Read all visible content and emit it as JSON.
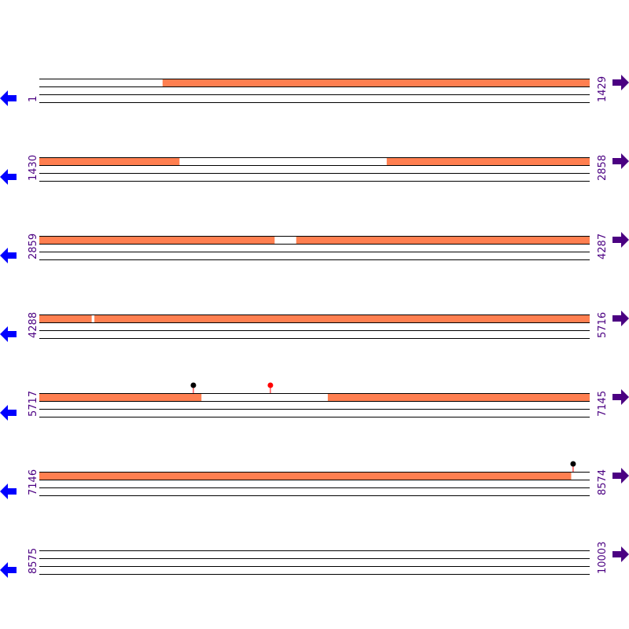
{
  "colors": {
    "feature": "#FF7F50",
    "line": "#000000",
    "label": "#4B0082",
    "left_arrow": "#0000FF",
    "right_arrow": "#4B0082",
    "marker_black": "#000000",
    "marker_red": "#FF0000",
    "stem": "#FF0000"
  },
  "icons": {
    "left": "arrow-left-icon",
    "right": "arrow-right-icon",
    "marker": "lollipop-marker-icon"
  },
  "rows": [
    {
      "start": "1",
      "end": "1429",
      "s": 1,
      "e": 1429,
      "features": [
        [
          321,
          1429
        ]
      ],
      "markers": []
    },
    {
      "start": "1430",
      "end": "2858",
      "s": 1430,
      "e": 2858,
      "features": [
        [
          1430,
          1793
        ],
        [
          2332,
          2858
        ]
      ],
      "markers": []
    },
    {
      "start": "2859",
      "end": "4287",
      "s": 2859,
      "e": 4287,
      "features": [
        [
          2859,
          3469
        ],
        [
          3526,
          4287
        ]
      ],
      "markers": []
    },
    {
      "start": "4288",
      "end": "5716",
      "s": 4288,
      "e": 5716,
      "features": [
        [
          4288,
          4423
        ],
        [
          4431,
          5716
        ]
      ],
      "markers": []
    },
    {
      "start": "5717",
      "end": "7145",
      "s": 5717,
      "e": 7145,
      "features": [
        [
          5717,
          6137
        ],
        [
          6466,
          7145
        ]
      ],
      "markers": [
        {
          "pos": 6117,
          "color": "black"
        },
        {
          "pos": 6317,
          "color": "red"
        }
      ]
    },
    {
      "start": "7146",
      "end": "8574",
      "s": 7146,
      "e": 8574,
      "features": [
        [
          7146,
          8526
        ]
      ],
      "markers": [
        {
          "pos": 8532,
          "color": "black"
        }
      ]
    },
    {
      "start": "8575",
      "end": "10003",
      "s": 8575,
      "e": 10003,
      "features": [],
      "markers": []
    }
  ]
}
